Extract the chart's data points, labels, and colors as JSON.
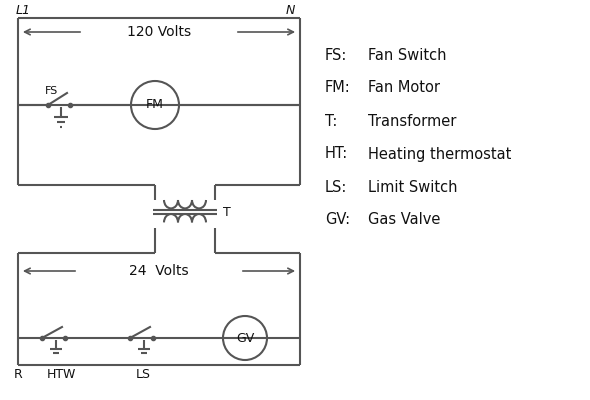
{
  "bg_color": "#ffffff",
  "line_color": "#555555",
  "text_color": "#111111",
  "legend_items": [
    [
      "FS:",
      "Fan Switch"
    ],
    [
      "FM:",
      "Fan Motor"
    ],
    [
      "T:",
      "Transformer"
    ],
    [
      "HT:",
      "Heating thermostat"
    ],
    [
      "LS:",
      "Limit Switch"
    ],
    [
      "GV:",
      "Gas Valve"
    ]
  ],
  "L1_label": "L1",
  "N_label": "N",
  "volts120": "120 Volts",
  "volts24": "24  Volts",
  "transformer_label": "T",
  "FS_label": "FS",
  "FM_label": "FM",
  "GV_label": "GV",
  "R_label": "R",
  "W_label": "W",
  "HT_label": "HT",
  "LS_label": "LS"
}
